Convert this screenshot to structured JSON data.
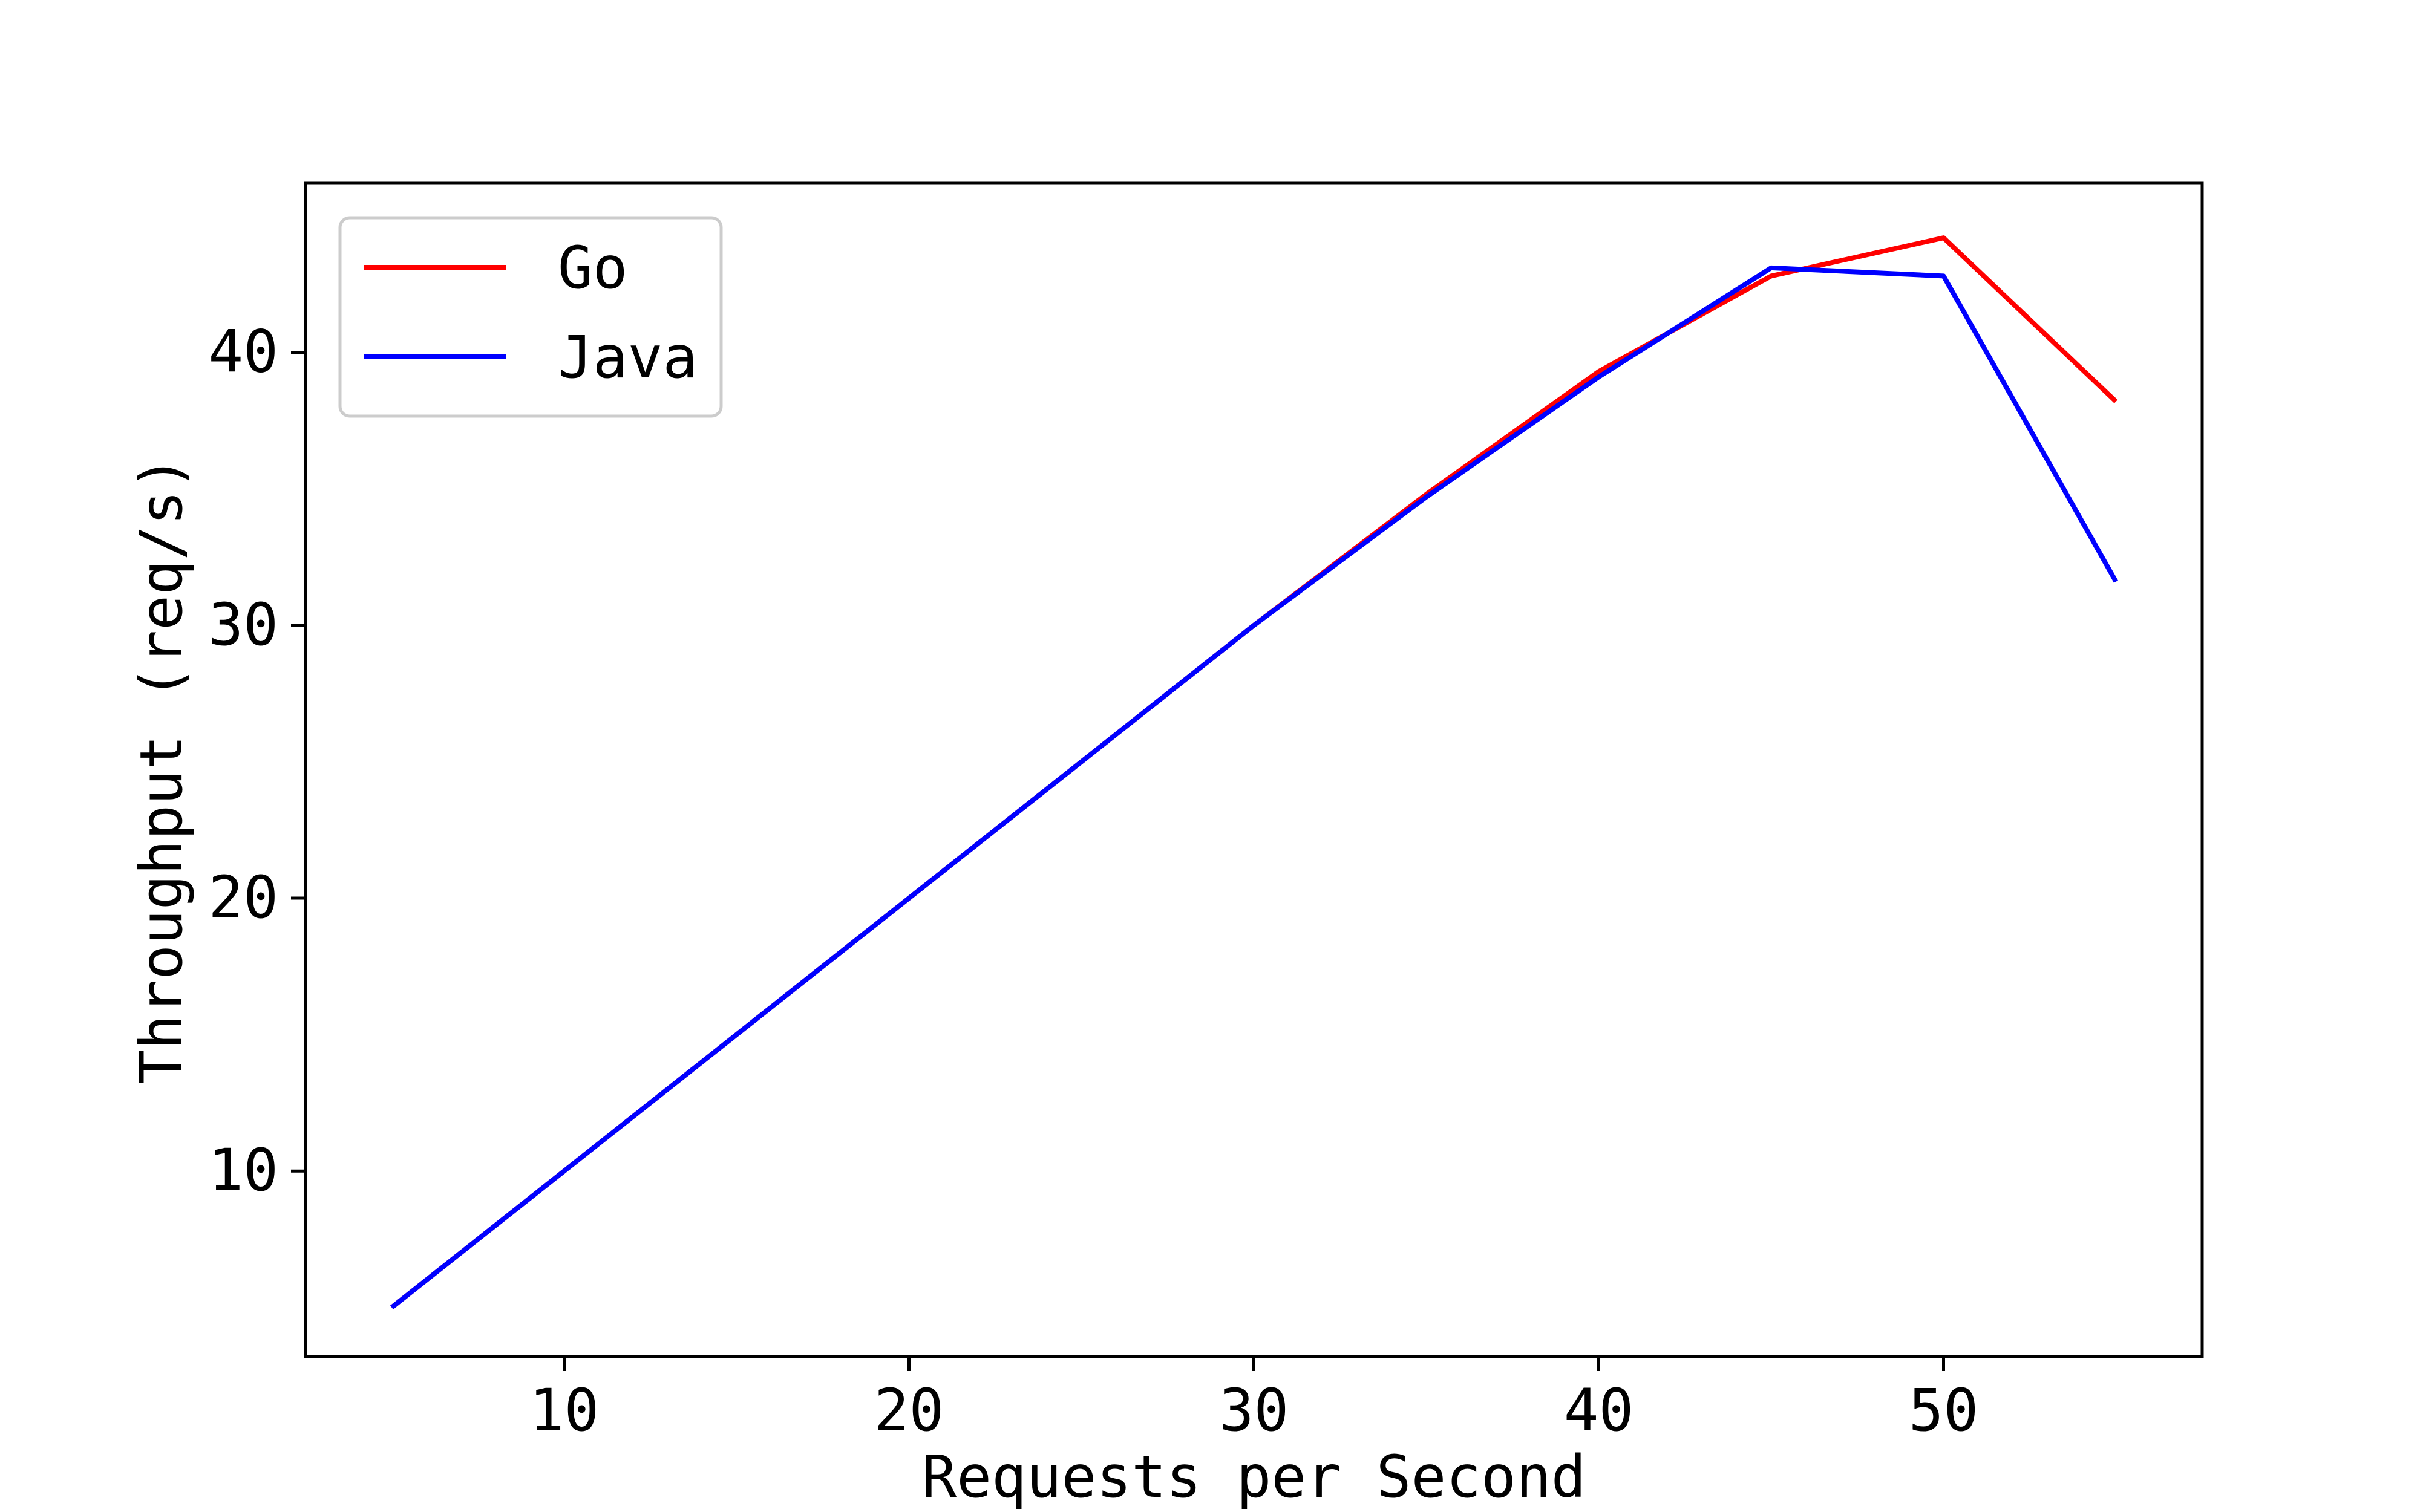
{
  "chart_data": {
    "type": "line",
    "title": "",
    "xlabel": "Requests per Second",
    "ylabel": "Throughput (req/s)",
    "xlim": [
      2.5,
      57.5
    ],
    "ylim": [
      3.2,
      46.2
    ],
    "xticks": [
      10,
      20,
      30,
      40,
      50
    ],
    "yticks": [
      10,
      20,
      30,
      40
    ],
    "grid": false,
    "legend_position": "top-left",
    "series": [
      {
        "name": "Go",
        "color": "#ff0000",
        "x": [
          5,
          10,
          15,
          20,
          25,
          30,
          35,
          40,
          45,
          50,
          55
        ],
        "y": [
          5.0,
          10.0,
          15.0,
          20.0,
          25.0,
          30.0,
          34.8,
          39.3,
          42.8,
          44.2,
          38.2
        ]
      },
      {
        "name": "Java",
        "color": "#0000ff",
        "x": [
          5,
          10,
          15,
          20,
          25,
          30,
          35,
          40,
          45,
          50,
          55
        ],
        "y": [
          5.0,
          10.0,
          15.0,
          20.0,
          25.0,
          30.0,
          34.7,
          39.1,
          43.1,
          42.8,
          31.6
        ]
      }
    ]
  }
}
